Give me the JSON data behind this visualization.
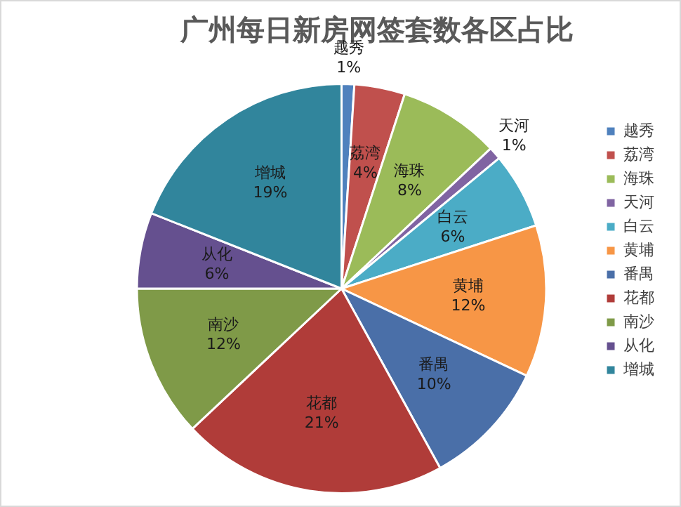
{
  "chart_data": {
    "type": "pie",
    "title": "广州每日新房网签套数各区占比",
    "categories": [
      "越秀",
      "荔湾",
      "海珠",
      "天河",
      "白云",
      "黄埔",
      "番禺",
      "花都",
      "南沙",
      "从化",
      "增城"
    ],
    "values": [
      1,
      4,
      8,
      1,
      6,
      12,
      10,
      21,
      12,
      6,
      19
    ],
    "value_labels": [
      "1%",
      "4%",
      "8%",
      "1%",
      "6%",
      "12%",
      "10%",
      "21%",
      "12%",
      "6%",
      "19%"
    ],
    "colors": [
      "#4f81bd",
      "#c0504d",
      "#9bbb59",
      "#8064a2",
      "#4bacc6",
      "#f79646",
      "#4a6fa8",
      "#b03c39",
      "#7f9a48",
      "#65508f",
      "#31859c"
    ],
    "legend": "right"
  }
}
